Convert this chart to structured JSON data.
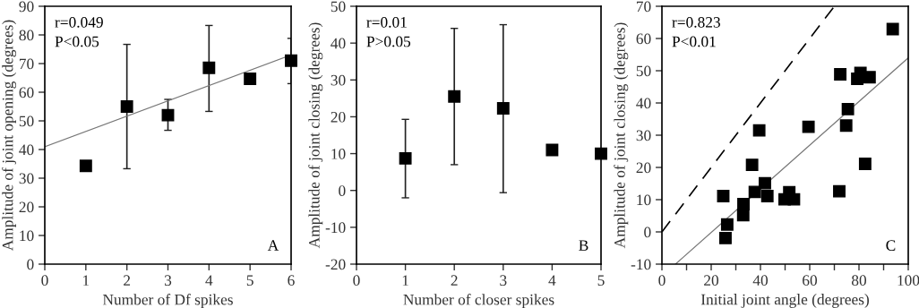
{
  "chart_data": [
    {
      "type": "scatter",
      "xlabel": "Number of Df spikes",
      "ylabel": "Amplitude of joint opening (degrees)",
      "annotations": [
        "r=0.049",
        "P<0.05",
        "A"
      ],
      "xlim": [
        0,
        6
      ],
      "xticks": [
        0,
        1,
        2,
        3,
        4,
        5,
        6
      ],
      "ylim": [
        0,
        90
      ],
      "yticks": [
        0,
        10,
        20,
        30,
        40,
        50,
        60,
        70,
        80,
        90
      ],
      "grid": false,
      "legend": false,
      "series": [
        {
          "marker": "square",
          "color": "#000000",
          "x": [
            1,
            2,
            3,
            4,
            5,
            6
          ],
          "values": [
            34.3,
            55,
            52,
            68.5,
            64.7,
            71
          ],
          "errors": [
            null,
            [
              33.3,
              76.7
            ],
            [
              46.7,
              57.5
            ],
            [
              53.3,
              83.3
            ],
            null,
            [
              63,
              78.8
            ]
          ]
        },
        {
          "type": "line",
          "color": "#777777",
          "x": [
            0,
            6
          ],
          "values": [
            41,
            73
          ]
        }
      ]
    },
    {
      "type": "scatter",
      "xlabel": "Number of closer spikes",
      "ylabel": "Amplitude of joint closing (degrees)",
      "annotations": [
        "r=0.01",
        "P>0.05",
        "B"
      ],
      "xlim": [
        0,
        5
      ],
      "xticks": [
        0,
        1,
        2,
        3,
        4,
        5
      ],
      "ylim": [
        -20,
        50
      ],
      "yticks": [
        -20,
        -10,
        0,
        10,
        20,
        30,
        40,
        50
      ],
      "grid": false,
      "legend": false,
      "series": [
        {
          "marker": "square",
          "color": "#000000",
          "x": [
            1,
            2,
            3,
            4,
            5
          ],
          "values": [
            8.7,
            25.5,
            22.3,
            11,
            10
          ],
          "errors": [
            [
              -2,
              19.3
            ],
            [
              7,
              44
            ],
            [
              -0.6,
              45
            ],
            null,
            null
          ]
        }
      ]
    },
    {
      "type": "scatter",
      "xlabel": "Initial joint angle (degrees)",
      "ylabel": "Amplitude of joint closing (degrees)",
      "annotations": [
        "r=0.823",
        "P<0.01",
        "C"
      ],
      "xlim": [
        0,
        100
      ],
      "xticks": [
        0,
        {
          "value": 10,
          "label": null
        },
        20,
        {
          "value": 30,
          "label": null
        },
        40,
        {
          "value": 50,
          "label": null
        },
        60,
        {
          "value": 70,
          "label": null
        },
        80,
        {
          "value": 90,
          "label": null
        },
        100
      ],
      "ylim": [
        -10,
        70
      ],
      "yticks": [
        -10,
        0,
        10,
        20,
        30,
        40,
        50,
        60,
        70
      ],
      "grid": false,
      "legend": false,
      "series": [
        {
          "marker": "square",
          "color": "#000000",
          "x": [
            24.9,
            25.8,
            26.5,
            33.1,
            33.0,
            36.6,
            37.7,
            39.5,
            41.8,
            42.8,
            49.8,
            51.7,
            53.6,
            59.5,
            72.0,
            72.4,
            74.8,
            75.5,
            79.3,
            80.6,
            84.3,
            82.5,
            93.7
          ],
          "values": [
            11.1,
            -1.9,
            2.3,
            8.6,
            5.2,
            20.8,
            12.4,
            31.5,
            15.1,
            11.1,
            10.1,
            12.3,
            10.1,
            32.6,
            12.6,
            48.9,
            33.0,
            38.1,
            47.5,
            49.3,
            48.0,
            21.1,
            62.9
          ]
        },
        {
          "type": "line",
          "color": "#777777",
          "x": [
            5.5,
            100
          ],
          "values": [
            -10,
            54
          ]
        },
        {
          "type": "line",
          "color": "#000000",
          "line_style": "dashed",
          "x": [
            0,
            70
          ],
          "values": [
            0,
            70
          ]
        }
      ]
    }
  ]
}
